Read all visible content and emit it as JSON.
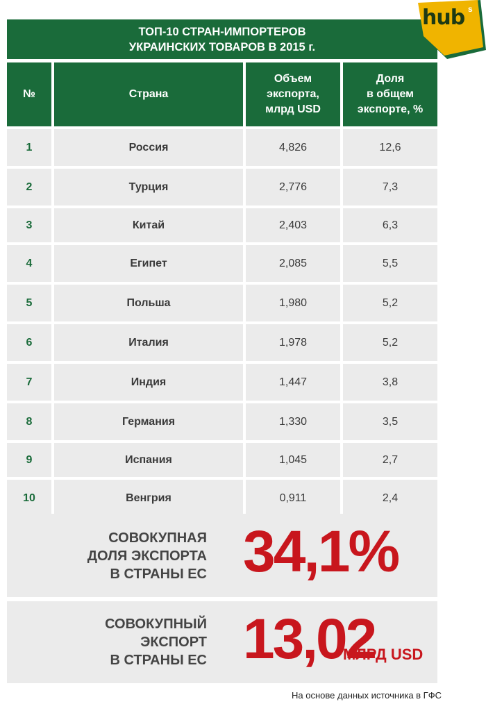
{
  "logo": {
    "text": "hub",
    "sup": "s"
  },
  "title": {
    "line1": "ТОП-10 СТРАН-ИМПОРТЕРОВ",
    "line2": "УКРАИНСКИХ ТОВАРОВ В 2015 г."
  },
  "table": {
    "headers": {
      "num": "№",
      "country": "Страна",
      "volume": [
        "Объем",
        "экспорта,",
        "млрд USD"
      ],
      "share": [
        "Доля",
        "в общем",
        "экспорте, %"
      ]
    },
    "rows": [
      {
        "num": "1",
        "country": "Россия",
        "volume": "4,826",
        "share": "12,6"
      },
      {
        "num": "2",
        "country": "Турция",
        "volume": "2,776",
        "share": "7,3"
      },
      {
        "num": "3",
        "country": "Китай",
        "volume": "2,403",
        "share": "6,3"
      },
      {
        "num": "4",
        "country": "Египет",
        "volume": "2,085",
        "share": "5,5"
      },
      {
        "num": "5",
        "country": "Польша",
        "volume": "1,980",
        "share": "5,2"
      },
      {
        "num": "6",
        "country": "Италия",
        "volume": "1,978",
        "share": "5,2"
      },
      {
        "num": "7",
        "country": "Индия",
        "volume": "1,447",
        "share": "3,8"
      },
      {
        "num": "8",
        "country": "Германия",
        "volume": "1,330",
        "share": "3,5"
      },
      {
        "num": "9",
        "country": "Испания",
        "volume": "1,045",
        "share": "2,7"
      },
      {
        "num": "10",
        "country": "Венгрия",
        "volume": "0,911",
        "share": "2,4"
      }
    ]
  },
  "summary": {
    "share": {
      "label": [
        "СОВОКУПНАЯ",
        "ДОЛЯ ЭКСПОРТА",
        "В СТРАНЫ ЕС"
      ],
      "value": "34,1%"
    },
    "total": {
      "label": [
        "СОВОКУПНЫЙ",
        "ЭКСПОРТ",
        "В СТРАНЫ ЕС"
      ],
      "value": "13,02",
      "unit": "МЛРД USD"
    }
  },
  "source": "На основе данных источника в ГФС",
  "colors": {
    "green": "#1a6b3a",
    "red": "#c8161d",
    "gray": "#ebebeb",
    "logo": "#f0b400"
  }
}
